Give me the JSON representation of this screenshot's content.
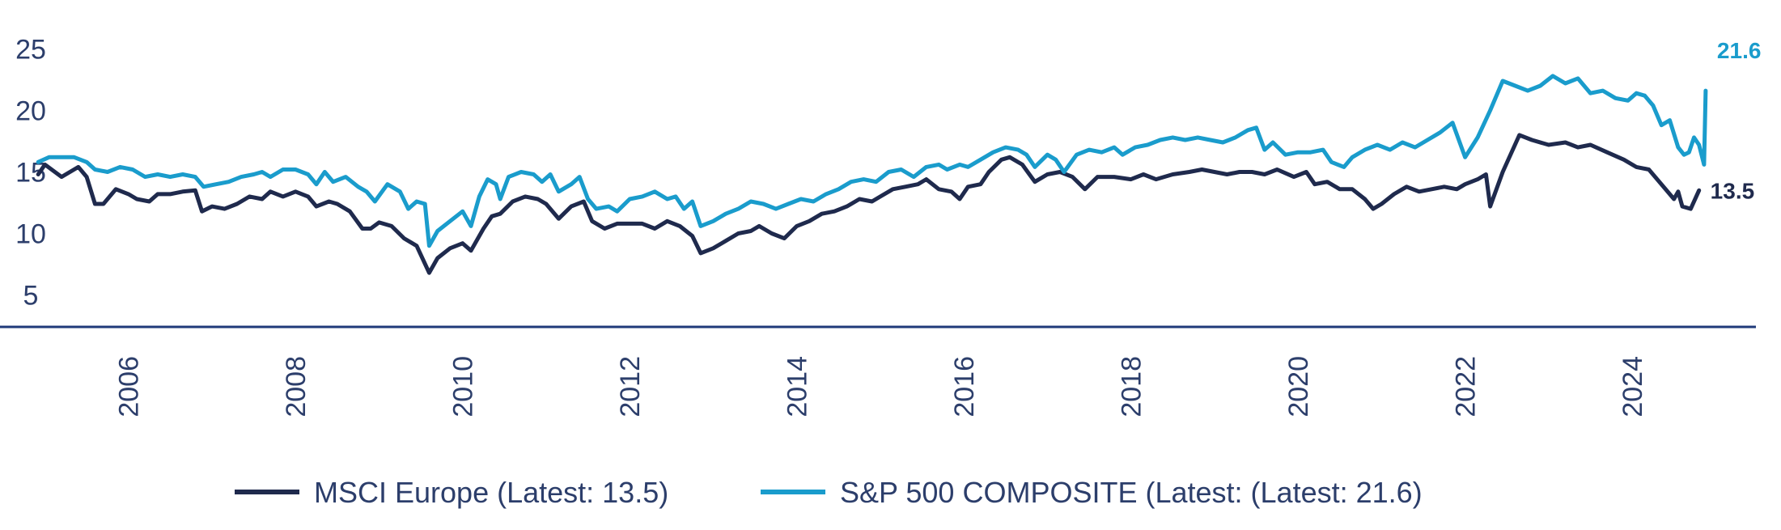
{
  "chart_data": {
    "type": "line",
    "title": "",
    "xlabel": "",
    "ylabel": "",
    "xlim": [
      2004.85,
      2024.9
    ],
    "ylim": [
      3,
      27
    ],
    "yticks": [
      5,
      10,
      15,
      20,
      25
    ],
    "xticks": [
      "2006",
      "2008",
      "2010",
      "2012",
      "2014",
      "2016",
      "2018",
      "2020",
      "2022",
      "2024"
    ],
    "grid": false,
    "legend_position": "bottom",
    "series": [
      {
        "name": "MSCI Europe (Latest: 13.5)",
        "color": "#1f2a4d",
        "end_label": "13.5",
        "points": [
          [
            2004.92,
            14.8
          ],
          [
            2005.0,
            15.6
          ],
          [
            2005.2,
            14.6
          ],
          [
            2005.4,
            15.4
          ],
          [
            2005.5,
            14.6
          ],
          [
            2005.6,
            12.4
          ],
          [
            2005.7,
            12.4
          ],
          [
            2005.85,
            13.6
          ],
          [
            2006.0,
            13.2
          ],
          [
            2006.1,
            12.8
          ],
          [
            2006.25,
            12.6
          ],
          [
            2006.35,
            13.2
          ],
          [
            2006.5,
            13.2
          ],
          [
            2006.65,
            13.4
          ],
          [
            2006.8,
            13.5
          ],
          [
            2006.88,
            11.8
          ],
          [
            2007.0,
            12.2
          ],
          [
            2007.15,
            12.0
          ],
          [
            2007.3,
            12.4
          ],
          [
            2007.45,
            13.0
          ],
          [
            2007.6,
            12.8
          ],
          [
            2007.7,
            13.4
          ],
          [
            2007.85,
            13.0
          ],
          [
            2008.0,
            13.4
          ],
          [
            2008.15,
            13.0
          ],
          [
            2008.25,
            12.2
          ],
          [
            2008.4,
            12.6
          ],
          [
            2008.5,
            12.4
          ],
          [
            2008.65,
            11.8
          ],
          [
            2008.8,
            10.4
          ],
          [
            2008.9,
            10.4
          ],
          [
            2009.0,
            10.9
          ],
          [
            2009.15,
            10.6
          ],
          [
            2009.3,
            9.6
          ],
          [
            2009.45,
            9.0
          ],
          [
            2009.6,
            6.8
          ],
          [
            2009.7,
            8.0
          ],
          [
            2009.85,
            8.8
          ],
          [
            2010.0,
            9.2
          ],
          [
            2010.1,
            8.6
          ],
          [
            2010.25,
            10.4
          ],
          [
            2010.35,
            11.4
          ],
          [
            2010.45,
            11.6
          ],
          [
            2010.6,
            12.6
          ],
          [
            2010.75,
            13.0
          ],
          [
            2010.9,
            12.8
          ],
          [
            2011.0,
            12.4
          ],
          [
            2011.15,
            11.2
          ],
          [
            2011.3,
            12.2
          ],
          [
            2011.45,
            12.6
          ],
          [
            2011.55,
            11.0
          ],
          [
            2011.7,
            10.4
          ],
          [
            2011.85,
            10.8
          ],
          [
            2012.0,
            10.8
          ],
          [
            2012.15,
            10.8
          ],
          [
            2012.3,
            10.4
          ],
          [
            2012.45,
            11.0
          ],
          [
            2012.6,
            10.6
          ],
          [
            2012.75,
            9.8
          ],
          [
            2012.85,
            8.4
          ],
          [
            2013.0,
            8.8
          ],
          [
            2013.15,
            9.4
          ],
          [
            2013.3,
            10.0
          ],
          [
            2013.45,
            10.2
          ],
          [
            2013.55,
            10.6
          ],
          [
            2013.7,
            10.0
          ],
          [
            2013.85,
            9.6
          ],
          [
            2014.0,
            10.6
          ],
          [
            2014.15,
            11.0
          ],
          [
            2014.3,
            11.6
          ],
          [
            2014.45,
            11.8
          ],
          [
            2014.6,
            12.2
          ],
          [
            2014.75,
            12.8
          ],
          [
            2014.9,
            12.6
          ],
          [
            2015.0,
            13.0
          ],
          [
            2015.15,
            13.6
          ],
          [
            2015.3,
            13.8
          ],
          [
            2015.45,
            14.0
          ],
          [
            2015.55,
            14.4
          ],
          [
            2015.7,
            13.6
          ],
          [
            2015.85,
            13.4
          ],
          [
            2015.95,
            12.8
          ],
          [
            2016.05,
            13.8
          ],
          [
            2016.2,
            14.0
          ],
          [
            2016.3,
            15.0
          ],
          [
            2016.45,
            16.0
          ],
          [
            2016.55,
            16.2
          ],
          [
            2016.7,
            15.6
          ],
          [
            2016.85,
            14.2
          ],
          [
            2017.0,
            14.8
          ],
          [
            2017.15,
            15.0
          ],
          [
            2017.3,
            14.6
          ],
          [
            2017.45,
            13.6
          ],
          [
            2017.6,
            14.6
          ],
          [
            2017.8,
            14.6
          ],
          [
            2018.0,
            14.4
          ],
          [
            2018.15,
            14.8
          ],
          [
            2018.3,
            14.4
          ],
          [
            2018.5,
            14.8
          ],
          [
            2018.7,
            15.0
          ],
          [
            2018.85,
            15.2
          ],
          [
            2019.0,
            15.0
          ],
          [
            2019.15,
            14.8
          ],
          [
            2019.3,
            15.0
          ],
          [
            2019.45,
            15.0
          ],
          [
            2019.6,
            14.8
          ],
          [
            2019.75,
            15.2
          ],
          [
            2019.95,
            14.6
          ],
          [
            2020.1,
            15.0
          ],
          [
            2020.2,
            14.0
          ],
          [
            2020.35,
            14.2
          ],
          [
            2020.5,
            13.6
          ],
          [
            2020.65,
            13.6
          ],
          [
            2020.8,
            12.8
          ],
          [
            2020.9,
            12.0
          ],
          [
            2021.0,
            12.4
          ],
          [
            2021.15,
            13.2
          ],
          [
            2021.3,
            13.8
          ],
          [
            2021.45,
            13.4
          ],
          [
            2021.6,
            13.6
          ],
          [
            2021.75,
            13.8
          ],
          [
            2021.9,
            13.6
          ],
          [
            2022.0,
            14.0
          ],
          [
            2022.15,
            14.4
          ],
          [
            2022.25,
            14.8
          ],
          [
            2022.3,
            12.2
          ],
          [
            2022.45,
            15.0
          ],
          [
            2022.65,
            18.0
          ],
          [
            2022.8,
            17.6
          ],
          [
            2023.0,
            17.2
          ],
          [
            2023.2,
            17.4
          ],
          [
            2023.35,
            17.0
          ],
          [
            2023.5,
            17.2
          ],
          [
            2023.7,
            16.6
          ],
          [
            2023.9,
            16.0
          ],
          [
            2024.05,
            15.4
          ],
          [
            2024.2,
            15.2
          ],
          [
            2024.35,
            14.0
          ],
          [
            2024.5,
            12.8
          ],
          [
            2024.55,
            13.4
          ],
          [
            2024.6,
            12.2
          ],
          [
            2024.7,
            12.0
          ],
          [
            2024.8,
            13.5
          ]
        ]
      },
      {
        "name": "S&P 500 COMPOSITE (Latest:  (Latest: 21.6)",
        "color": "#1a9ccc",
        "end_label": "21.6",
        "points": [
          [
            2004.92,
            15.8
          ],
          [
            2005.05,
            16.2
          ],
          [
            2005.2,
            16.2
          ],
          [
            2005.35,
            16.2
          ],
          [
            2005.5,
            15.8
          ],
          [
            2005.6,
            15.2
          ],
          [
            2005.75,
            15.0
          ],
          [
            2005.9,
            15.4
          ],
          [
            2006.05,
            15.2
          ],
          [
            2006.2,
            14.6
          ],
          [
            2006.35,
            14.8
          ],
          [
            2006.5,
            14.6
          ],
          [
            2006.65,
            14.8
          ],
          [
            2006.8,
            14.6
          ],
          [
            2006.9,
            13.8
          ],
          [
            2007.05,
            14.0
          ],
          [
            2007.2,
            14.2
          ],
          [
            2007.35,
            14.6
          ],
          [
            2007.5,
            14.8
          ],
          [
            2007.6,
            15.0
          ],
          [
            2007.7,
            14.6
          ],
          [
            2007.85,
            15.2
          ],
          [
            2008.0,
            15.2
          ],
          [
            2008.15,
            14.8
          ],
          [
            2008.25,
            14.0
          ],
          [
            2008.35,
            15.0
          ],
          [
            2008.45,
            14.2
          ],
          [
            2008.6,
            14.6
          ],
          [
            2008.75,
            13.8
          ],
          [
            2008.85,
            13.4
          ],
          [
            2008.95,
            12.6
          ],
          [
            2009.1,
            14.0
          ],
          [
            2009.25,
            13.4
          ],
          [
            2009.35,
            12.0
          ],
          [
            2009.45,
            12.6
          ],
          [
            2009.55,
            12.4
          ],
          [
            2009.6,
            9.0
          ],
          [
            2009.7,
            10.2
          ],
          [
            2009.85,
            11.0
          ],
          [
            2010.0,
            11.8
          ],
          [
            2010.1,
            10.6
          ],
          [
            2010.2,
            13.0
          ],
          [
            2010.3,
            14.4
          ],
          [
            2010.4,
            14.0
          ],
          [
            2010.45,
            12.8
          ],
          [
            2010.55,
            14.6
          ],
          [
            2010.7,
            15.0
          ],
          [
            2010.85,
            14.8
          ],
          [
            2010.95,
            14.2
          ],
          [
            2011.05,
            14.8
          ],
          [
            2011.15,
            13.4
          ],
          [
            2011.3,
            14.0
          ],
          [
            2011.4,
            14.6
          ],
          [
            2011.5,
            12.8
          ],
          [
            2011.6,
            12.0
          ],
          [
            2011.75,
            12.2
          ],
          [
            2011.85,
            11.8
          ],
          [
            2012.0,
            12.8
          ],
          [
            2012.15,
            13.0
          ],
          [
            2012.3,
            13.4
          ],
          [
            2012.45,
            12.8
          ],
          [
            2012.55,
            13.0
          ],
          [
            2012.65,
            12.0
          ],
          [
            2012.75,
            12.6
          ],
          [
            2012.85,
            10.6
          ],
          [
            2013.0,
            11.0
          ],
          [
            2013.15,
            11.6
          ],
          [
            2013.3,
            12.0
          ],
          [
            2013.45,
            12.6
          ],
          [
            2013.6,
            12.4
          ],
          [
            2013.75,
            12.0
          ],
          [
            2013.9,
            12.4
          ],
          [
            2014.05,
            12.8
          ],
          [
            2014.2,
            12.6
          ],
          [
            2014.35,
            13.2
          ],
          [
            2014.5,
            13.6
          ],
          [
            2014.65,
            14.2
          ],
          [
            2014.8,
            14.4
          ],
          [
            2014.95,
            14.2
          ],
          [
            2015.1,
            15.0
          ],
          [
            2015.25,
            15.2
          ],
          [
            2015.4,
            14.6
          ],
          [
            2015.55,
            15.4
          ],
          [
            2015.7,
            15.6
          ],
          [
            2015.8,
            15.2
          ],
          [
            2015.95,
            15.6
          ],
          [
            2016.05,
            15.4
          ],
          [
            2016.2,
            16.0
          ],
          [
            2016.35,
            16.6
          ],
          [
            2016.5,
            17.0
          ],
          [
            2016.65,
            16.8
          ],
          [
            2016.75,
            16.4
          ],
          [
            2016.85,
            15.4
          ],
          [
            2017.0,
            16.4
          ],
          [
            2017.1,
            16.0
          ],
          [
            2017.2,
            15.0
          ],
          [
            2017.35,
            16.4
          ],
          [
            2017.5,
            16.8
          ],
          [
            2017.65,
            16.6
          ],
          [
            2017.8,
            17.0
          ],
          [
            2017.9,
            16.4
          ],
          [
            2018.05,
            17.0
          ],
          [
            2018.2,
            17.2
          ],
          [
            2018.35,
            17.6
          ],
          [
            2018.5,
            17.8
          ],
          [
            2018.65,
            17.6
          ],
          [
            2018.8,
            17.8
          ],
          [
            2018.95,
            17.6
          ],
          [
            2019.1,
            17.4
          ],
          [
            2019.25,
            17.8
          ],
          [
            2019.4,
            18.4
          ],
          [
            2019.5,
            18.6
          ],
          [
            2019.6,
            16.8
          ],
          [
            2019.7,
            17.4
          ],
          [
            2019.85,
            16.4
          ],
          [
            2020.0,
            16.6
          ],
          [
            2020.15,
            16.6
          ],
          [
            2020.3,
            16.8
          ],
          [
            2020.4,
            15.8
          ],
          [
            2020.55,
            15.4
          ],
          [
            2020.65,
            16.2
          ],
          [
            2020.8,
            16.8
          ],
          [
            2020.95,
            17.2
          ],
          [
            2021.1,
            16.8
          ],
          [
            2021.25,
            17.4
          ],
          [
            2021.4,
            17.0
          ],
          [
            2021.55,
            17.6
          ],
          [
            2021.7,
            18.2
          ],
          [
            2021.85,
            19.0
          ],
          [
            2022.0,
            16.2
          ],
          [
            2022.15,
            17.8
          ],
          [
            2022.3,
            20.0
          ],
          [
            2022.45,
            22.4
          ],
          [
            2022.6,
            22.0
          ],
          [
            2022.75,
            21.6
          ],
          [
            2022.9,
            22.0
          ],
          [
            2023.05,
            22.8
          ],
          [
            2023.2,
            22.2
          ],
          [
            2023.35,
            22.6
          ],
          [
            2023.5,
            21.4
          ],
          [
            2023.65,
            21.6
          ],
          [
            2023.8,
            21.0
          ],
          [
            2023.95,
            20.8
          ],
          [
            2024.05,
            21.4
          ],
          [
            2024.15,
            21.2
          ],
          [
            2024.25,
            20.4
          ],
          [
            2024.35,
            18.8
          ],
          [
            2024.45,
            19.2
          ],
          [
            2024.55,
            17.0
          ],
          [
            2024.62,
            16.4
          ],
          [
            2024.68,
            16.6
          ],
          [
            2024.74,
            17.8
          ],
          [
            2024.8,
            17.2
          ],
          [
            2024.86,
            15.6
          ],
          [
            2024.88,
            21.6
          ]
        ]
      }
    ]
  }
}
